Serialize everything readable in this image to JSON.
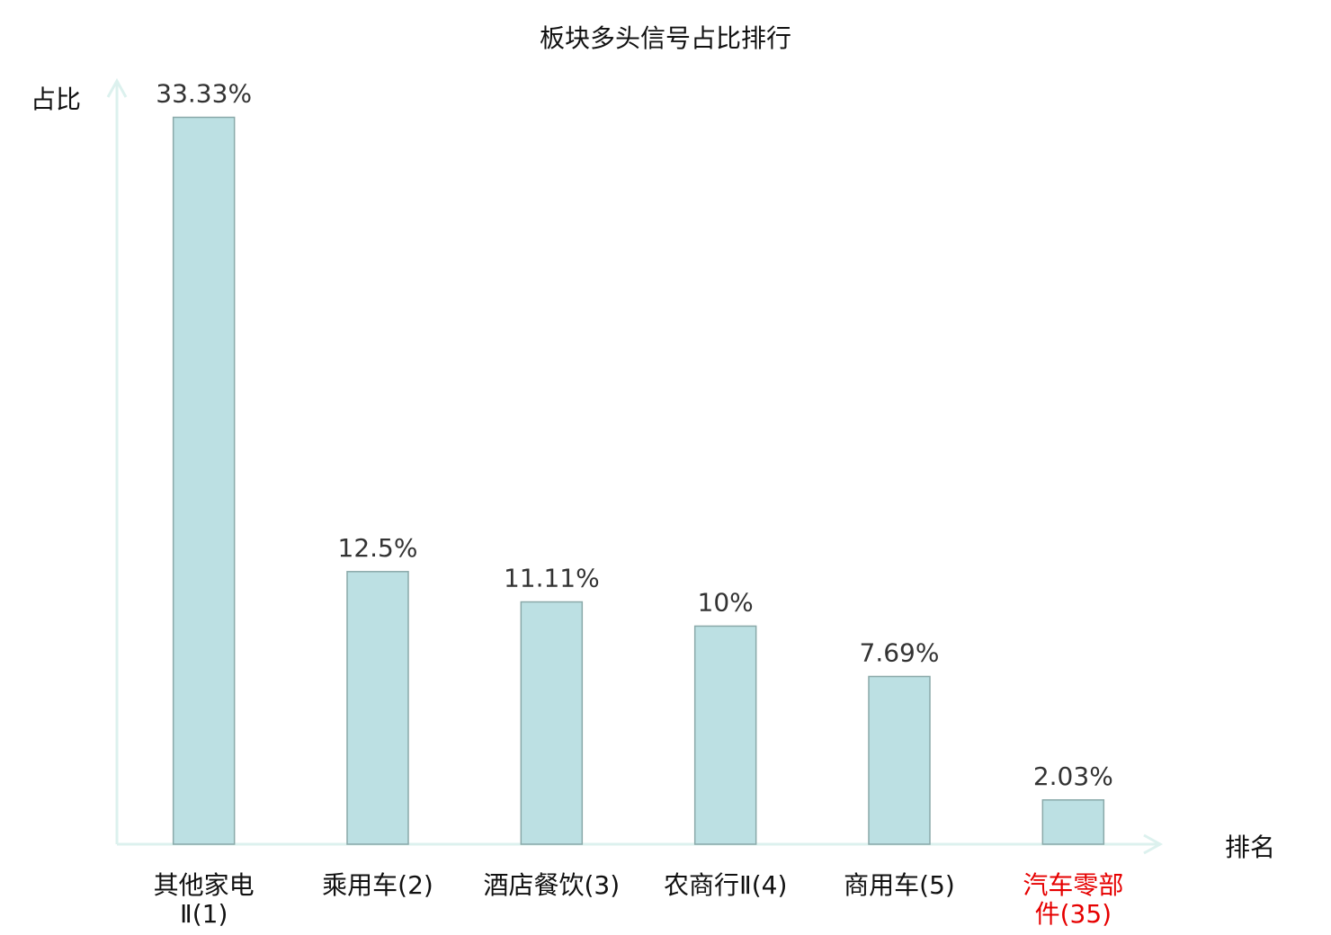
{
  "chart_data": {
    "type": "bar",
    "title": "板块多头信号占比排行",
    "xlabel": "排名",
    "ylabel": "占比",
    "categories": [
      [
        "其他家电",
        "Ⅱ(1)"
      ],
      [
        "乘用车(2)"
      ],
      [
        "酒店餐饮(3)"
      ],
      [
        "农商行Ⅱ(4)"
      ],
      [
        "商用车(5)"
      ],
      [
        "汽车零部",
        "件(35)"
      ]
    ],
    "values": [
      33.33,
      12.5,
      11.11,
      10,
      7.69,
      2.03
    ],
    "value_labels": [
      "33.33%",
      "12.5%",
      "11.11%",
      "10%",
      "7.69%",
      "2.03%"
    ],
    "highlighted_category_index": 5,
    "ylim": [
      0,
      35
    ],
    "grid": false,
    "colors": {
      "bar_fill": "#bce0e3",
      "bar_stroke": "#8aa9a9",
      "axis": "#dcf1ee",
      "tick_text": "#111111",
      "highlight_text": "#e60000"
    }
  }
}
